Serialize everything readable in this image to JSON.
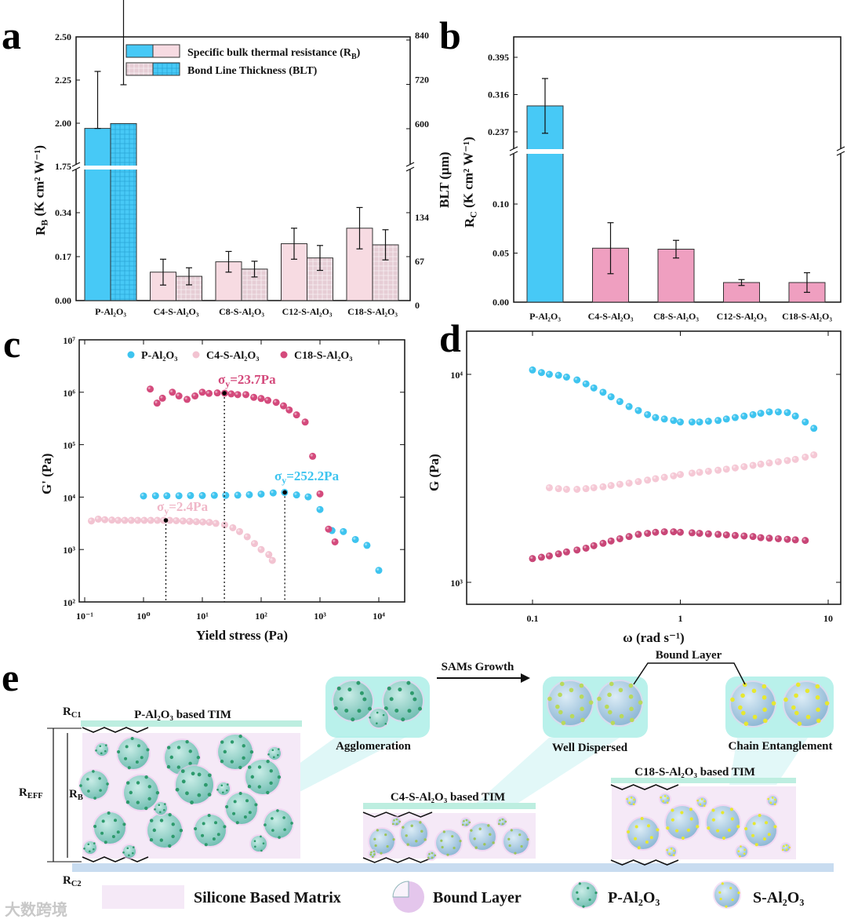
{
  "panel_labels": [
    "a",
    "b",
    "c",
    "d",
    "e"
  ],
  "chart_data": [
    {
      "panel": "a",
      "type": "bar",
      "categories": [
        "P-Al₂O₃",
        "C4-S-Al₂O₃",
        "C8-S-Al₂O₃",
        "C12-S-Al₂O₃",
        "C18-S-Al₂O₃"
      ],
      "ylabel": "R_B (K cm² W⁻¹)",
      "ylabel_parts": {
        "main": "R",
        "sub": "B",
        "rest": " (K cm² W⁻¹)"
      },
      "y2label": "BLT (μm)",
      "y_break": [
        0.51,
        1.75
      ],
      "y_ticks": [
        0,
        0.17,
        0.34,
        1.75,
        2.0,
        2.25,
        2.5
      ],
      "y_tick_labels": [
        "0.00",
        "0.17",
        "0.34",
        "1.75",
        "2.00",
        "2.25",
        "2.50"
      ],
      "y2_ticks": [
        0,
        67,
        134,
        600,
        720,
        840
      ],
      "y2_tick_labels": [
        "0",
        "67",
        "134",
        "600",
        "720",
        "840"
      ],
      "series": [
        {
          "name": "Specific bulk thermal resistance (R_B)",
          "legend_main": "Specific bulk thermal resistance (R",
          "legend_sub": "B",
          "legend_end": ")",
          "axis": "left",
          "values": [
            1.97,
            0.11,
            0.15,
            0.22,
            0.28
          ],
          "errors": [
            0.33,
            0.05,
            0.04,
            0.06,
            0.08
          ]
        },
        {
          "name": "Bond Line Thickness (BLT)",
          "axis": "right",
          "values": [
            614,
            37,
            48,
            65,
            85
          ],
          "errors": [
            105,
            13,
            12,
            19,
            23
          ]
        }
      ],
      "colors": {
        "p_bar": "#47c9f6",
        "s_bar": "#f7dbe2",
        "s_blt": "#e9d0d7"
      }
    },
    {
      "panel": "b",
      "type": "bar",
      "categories": [
        "P-Al₂O₃",
        "C4-S-Al₂O₃",
        "C8-S-Al₂O₃",
        "C12-S-Al₂O₃",
        "C18-S-Al₂O₃"
      ],
      "ylabel_parts": {
        "main": "R",
        "sub": "C",
        "rest": " (K cm² W⁻¹)"
      },
      "y_break": [
        0.154,
        0.195
      ],
      "y_ticks": [
        0.0,
        0.05,
        0.1,
        0.237,
        0.316,
        0.395
      ],
      "y_tick_labels": [
        "0.00",
        "0.05",
        "0.10",
        "0.237",
        "0.316",
        "0.395"
      ],
      "values": [
        0.292,
        0.055,
        0.054,
        0.02,
        0.02
      ],
      "errors": [
        0.058,
        0.026,
        0.009,
        0.003,
        0.01
      ],
      "colors": {
        "p_bar": "#47c9f6",
        "s_bar": "#ef9fc0"
      }
    },
    {
      "panel": "c",
      "type": "scatter",
      "xlabel": "Yield stress (Pa)",
      "ylabel": "G' (Pa)",
      "xscale": "log",
      "yscale": "log",
      "xlim": [
        0.1,
        30000
      ],
      "ylim": [
        100,
        10000000
      ],
      "x_ticks": [
        0.1,
        1,
        10,
        100,
        1000,
        10000
      ],
      "x_tick_labels": [
        "10⁻¹",
        "10⁰",
        "10¹",
        "10²",
        "10³",
        "10⁴"
      ],
      "y_ticks": [
        100,
        1000,
        10000,
        100000,
        1000000,
        10000000
      ],
      "y_tick_labels": [
        "10²",
        "10³",
        "10⁴",
        "10⁵",
        "10⁶",
        "10⁷"
      ],
      "legend_position": "top",
      "series": [
        {
          "name": "P-Al₂O₃",
          "color": "#3ec4ef",
          "x": [
            1,
            1.6,
            2.5,
            4,
            6.3,
            10,
            16,
            25,
            40,
            63,
            100,
            160,
            250,
            400,
            630,
            1000,
            1600,
            2500,
            4000,
            6300,
            10000
          ],
          "y": [
            10500,
            10600,
            10600,
            10600,
            10700,
            10700,
            10800,
            10800,
            10900,
            11100,
            11400,
            12000,
            12300,
            11000,
            10100,
            5800,
            2300,
            2200,
            1550,
            1200,
            400
          ]
        },
        {
          "name": "C4-S-Al₂O₃",
          "color": "#f2c3d1",
          "x": [
            0.13,
            0.17,
            0.22,
            0.29,
            0.37,
            0.48,
            0.62,
            0.8,
            1.03,
            1.33,
            1.72,
            2.2,
            2.8,
            3.6,
            4.7,
            6.1,
            7.9,
            10.2,
            13.2,
            17,
            24,
            33,
            43,
            58,
            77,
            100,
            135,
            155
          ],
          "y": [
            3500,
            3800,
            3700,
            3650,
            3600,
            3600,
            3600,
            3600,
            3600,
            3600,
            3600,
            3600,
            3600,
            3550,
            3500,
            3450,
            3400,
            3350,
            3300,
            3150,
            2950,
            2600,
            2200,
            1750,
            1300,
            1000,
            800,
            620
          ]
        },
        {
          "name": "C18-S-Al₂O₃",
          "color": "#d44a7c",
          "x": [
            1.3,
            1.7,
            2.1,
            3.1,
            4,
            5.5,
            7.5,
            10,
            13,
            18,
            24,
            31,
            40,
            55,
            75,
            100,
            130,
            180,
            240,
            300,
            400,
            560,
            750,
            1000,
            1400,
            1800
          ],
          "y": [
            1150000,
            620000,
            770000,
            1000000,
            850000,
            730000,
            850000,
            1000000,
            950000,
            970000,
            960000,
            930000,
            900000,
            900000,
            800000,
            760000,
            700000,
            640000,
            550000,
            460000,
            370000,
            270000,
            60000,
            11500,
            2450,
            1400
          ]
        }
      ],
      "annotations": [
        {
          "label": "σ",
          "sub": "y",
          "value": "=23.7Pa",
          "x": 23.7,
          "y": 960000,
          "color": "#d44a7c"
        },
        {
          "label": "σ",
          "sub": "y",
          "value": "=252.2Pa",
          "x": 252.2,
          "y": 12300,
          "color": "#3ec4ef"
        },
        {
          "label": "σ",
          "sub": "y",
          "value": "=2.4Pa",
          "x": 2.4,
          "y": 3600,
          "color": "#f0b7c8"
        }
      ]
    },
    {
      "panel": "d",
      "type": "scatter",
      "xlabel": "ω (rad s⁻¹)",
      "ylabel": "G (Pa)",
      "xscale": "log",
      "yscale": "log",
      "xlim": [
        0.064,
        14
      ],
      "ylim": [
        800,
        15000
      ],
      "x_ticks": [
        0.1,
        1,
        10
      ],
      "x_tick_labels": [
        "0.1",
        "1",
        "10"
      ],
      "y_ticks": [
        1000,
        10000
      ],
      "y_tick_labels": [
        "10³",
        "10⁴"
      ],
      "series": [
        {
          "name": "P-Al₂O₃",
          "color": "#3ec4ef",
          "x": [
            0.1,
            0.115,
            0.13,
            0.15,
            0.17,
            0.2,
            0.23,
            0.26,
            0.3,
            0.34,
            0.39,
            0.45,
            0.52,
            0.6,
            0.68,
            0.78,
            0.9,
            1.0,
            1.2,
            1.35,
            1.55,
            1.8,
            2.05,
            2.35,
            2.7,
            3.1,
            3.5,
            4.0,
            4.6,
            5.3,
            6.0,
            7.0,
            8.0
          ],
          "y": [
            10500,
            10200,
            10000,
            9900,
            9700,
            9400,
            9000,
            8600,
            8200,
            7800,
            7400,
            7000,
            6700,
            6400,
            6200,
            6100,
            6000,
            5900,
            5900,
            5900,
            5950,
            6000,
            6100,
            6200,
            6300,
            6400,
            6500,
            6600,
            6600,
            6550,
            6300,
            5900,
            5500
          ]
        },
        {
          "name": "C4-S-Al₂O₃",
          "color": "#f5c8d5",
          "x": [
            0.13,
            0.15,
            0.17,
            0.2,
            0.23,
            0.26,
            0.3,
            0.34,
            0.39,
            0.45,
            0.52,
            0.6,
            0.68,
            0.78,
            0.9,
            1.0,
            1.2,
            1.35,
            1.55,
            1.8,
            2.05,
            2.35,
            2.7,
            3.1,
            3.5,
            4.0,
            4.6,
            5.3,
            6.0,
            7.0,
            8.0
          ],
          "y": [
            2850,
            2820,
            2800,
            2800,
            2820,
            2850,
            2880,
            2920,
            2960,
            3000,
            3050,
            3100,
            3150,
            3200,
            3250,
            3300,
            3350,
            3380,
            3420,
            3460,
            3500,
            3550,
            3600,
            3650,
            3700,
            3750,
            3800,
            3850,
            3900,
            4000,
            4100
          ]
        },
        {
          "name": "C18-S-Al₂O₃",
          "color": "#c94677",
          "x": [
            0.1,
            0.115,
            0.13,
            0.15,
            0.17,
            0.2,
            0.23,
            0.26,
            0.3,
            0.34,
            0.39,
            0.45,
            0.52,
            0.6,
            0.68,
            0.78,
            0.9,
            1.0,
            1.2,
            1.35,
            1.55,
            1.8,
            2.05,
            2.35,
            2.7,
            3.1,
            3.5,
            4.0,
            4.6,
            5.3,
            6.0,
            7.0
          ],
          "y": [
            1300,
            1320,
            1340,
            1370,
            1400,
            1430,
            1460,
            1500,
            1540,
            1580,
            1620,
            1660,
            1700,
            1720,
            1740,
            1750,
            1750,
            1740,
            1730,
            1720,
            1710,
            1700,
            1690,
            1680,
            1670,
            1660,
            1640,
            1630,
            1620,
            1610,
            1600,
            1590
          ]
        }
      ]
    }
  ],
  "diagram": {
    "sams_growth": "SAMs Growth",
    "bound_layer_top": "Bound Layer",
    "agglomeration": "Agglomeration",
    "well_dispersed": "Well Dispersed",
    "chain_entanglement": "Chain Entanglement",
    "p_tim": "P-Al₂O₃ based TIM",
    "c4_tim": "C4-S-Al₂O₃ based TIM",
    "c18_tim": "C18-S-Al₂O₃ based TIM",
    "rc1": {
      "main": "R",
      "sub": "C1"
    },
    "rc2": {
      "main": "R",
      "sub": "C2"
    },
    "reff": {
      "main": "R",
      "sub": "EFF"
    },
    "rb": {
      "main": "R",
      "sub": "B"
    },
    "legend": [
      "Silicone Based Matrix",
      "Bound Layer",
      "P-Al₂O₃",
      "S-Al₂O₃"
    ],
    "watermark": "大数跨境"
  }
}
